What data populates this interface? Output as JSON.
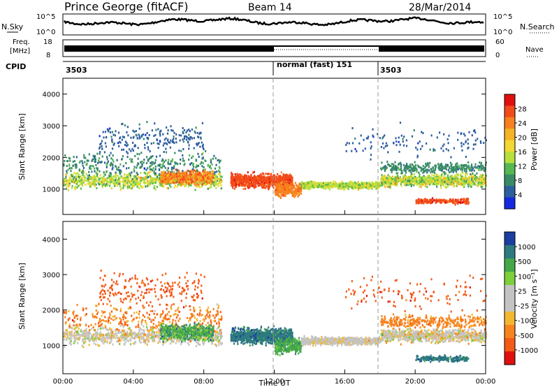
{
  "header": {
    "station": "Prince George (fitACF)",
    "beam": "Beam 14",
    "date": "28/Mar/2014"
  },
  "panels": {
    "noise": {
      "left_label": "N.Sky",
      "left_ticks": [
        "10^5",
        "10^0"
      ],
      "right_label": "N.Search",
      "right_ticks": [
        "10^5",
        "10^0"
      ]
    },
    "freq": {
      "left_label_1": "Freq.",
      "left_label_2": "[MHz]",
      "left_ticks": [
        "18",
        "8"
      ],
      "right_label": "Nave",
      "right_ticks": [
        "60",
        "0"
      ]
    },
    "cpid": {
      "label": "CPID",
      "segments": [
        {
          "label": "3503"
        },
        {
          "label": "normal (fast) 151"
        },
        {
          "label": "3503"
        }
      ]
    }
  },
  "chart_data": [
    {
      "type": "heatmap",
      "name": "power",
      "ylabel": "Slant Range [km]",
      "ylim": [
        200,
        4500
      ],
      "yticks": [
        "1000",
        "2000",
        "3000",
        "4000"
      ],
      "colorbar_label": "Power [dB]",
      "colorbar_ticks": [
        "28",
        "24",
        "20",
        "16",
        "12",
        "8",
        "4"
      ],
      "colorbar_colors": [
        "#e01010",
        "#f24a1a",
        "#f7811e",
        "#f4b425",
        "#f2d830",
        "#b7e03c",
        "#55b850",
        "#3a8a68",
        "#2d5f9e",
        "#1428e0"
      ]
    },
    {
      "type": "heatmap",
      "name": "velocity",
      "ylabel": "Slant Range [km]",
      "xlabel": "Time UT",
      "ylim": [
        200,
        4500
      ],
      "yticks": [
        "1000",
        "2000",
        "3000",
        "4000"
      ],
      "xticks": [
        "00:00",
        "04:00",
        "08:00",
        "12:00",
        "16:00",
        "20:00",
        "00:00"
      ],
      "colorbar_label": "Velocity [m s⁻¹]",
      "colorbar_ticks": [
        "1000",
        "500",
        "100",
        "25",
        "-25",
        "-100",
        "-500",
        "-1000"
      ],
      "colorbar_colors": [
        "#1a3fa0",
        "#2e7a80",
        "#44a84a",
        "#7cd03a",
        "#c4c4c4",
        "#c4c4c4",
        "#f2b830",
        "#f7841e",
        "#f45a18",
        "#e01010"
      ]
    }
  ]
}
